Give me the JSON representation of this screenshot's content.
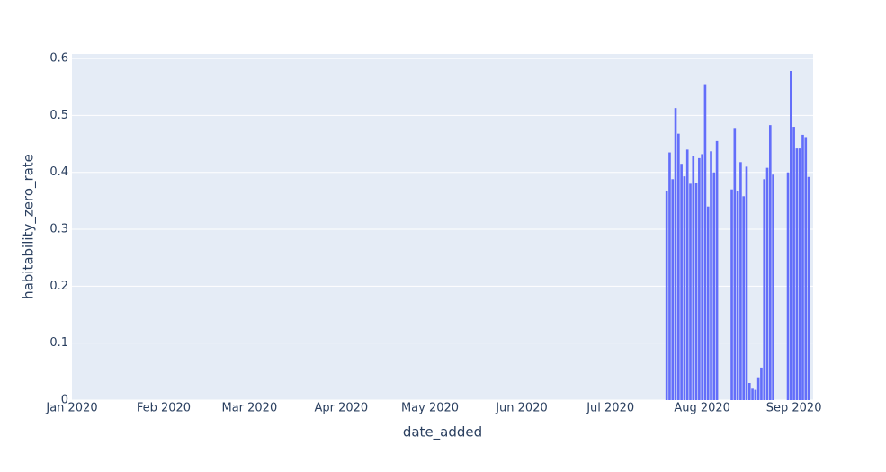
{
  "chart_data": {
    "type": "bar",
    "x_title": "date_added",
    "y_title": "habitability_zero_rate",
    "color": "#636efa",
    "grid": true,
    "xlim": [
      "2020-01-01",
      "2020-09-07T12:00"
    ],
    "ylim": [
      0,
      0.608
    ],
    "xticks": [
      {
        "value": "2020-01-01",
        "label": "Jan 2020"
      },
      {
        "value": "2020-02-01",
        "label": "Feb 2020"
      },
      {
        "value": "2020-03-01",
        "label": "Mar 2020"
      },
      {
        "value": "2020-04-01",
        "label": "Apr 2020"
      },
      {
        "value": "2020-05-01",
        "label": "May 2020"
      },
      {
        "value": "2020-06-01",
        "label": "Jun 2020"
      },
      {
        "value": "2020-07-01",
        "label": "Jul 2020"
      },
      {
        "value": "2020-08-01",
        "label": "Aug 2020"
      },
      {
        "value": "2020-09-01",
        "label": "Sep 2020"
      }
    ],
    "yticks": [
      0,
      0.1,
      0.2,
      0.3,
      0.4,
      0.5,
      0.6
    ],
    "x": [
      "2020-07-20",
      "2020-07-21",
      "2020-07-22",
      "2020-07-23",
      "2020-07-24",
      "2020-07-25",
      "2020-07-26",
      "2020-07-27",
      "2020-07-28",
      "2020-07-29",
      "2020-07-30",
      "2020-07-31",
      "2020-08-01",
      "2020-08-02",
      "2020-08-03",
      "2020-08-04",
      "2020-08-05",
      "2020-08-06",
      "2020-08-11",
      "2020-08-12",
      "2020-08-13",
      "2020-08-14",
      "2020-08-15",
      "2020-08-16",
      "2020-08-17",
      "2020-08-18",
      "2020-08-19",
      "2020-08-20",
      "2020-08-21",
      "2020-08-22",
      "2020-08-23",
      "2020-08-24",
      "2020-08-25",
      "2020-08-30",
      "2020-08-31",
      "2020-09-01",
      "2020-09-02",
      "2020-09-03",
      "2020-09-04",
      "2020-09-05",
      "2020-09-06"
    ],
    "values": [
      0.368,
      0.435,
      0.388,
      0.513,
      0.468,
      0.415,
      0.393,
      0.44,
      0.38,
      0.428,
      0.382,
      0.425,
      0.432,
      0.555,
      0.34,
      0.437,
      0.4,
      0.455,
      0.37,
      0.478,
      0.367,
      0.418,
      0.358,
      0.41,
      0.03,
      0.02,
      0.018,
      0.04,
      0.057,
      0.388,
      0.408,
      0.483,
      0.396,
      0.4,
      0.578,
      0.48,
      0.442,
      0.442,
      0.466,
      0.462,
      0.392
    ]
  }
}
